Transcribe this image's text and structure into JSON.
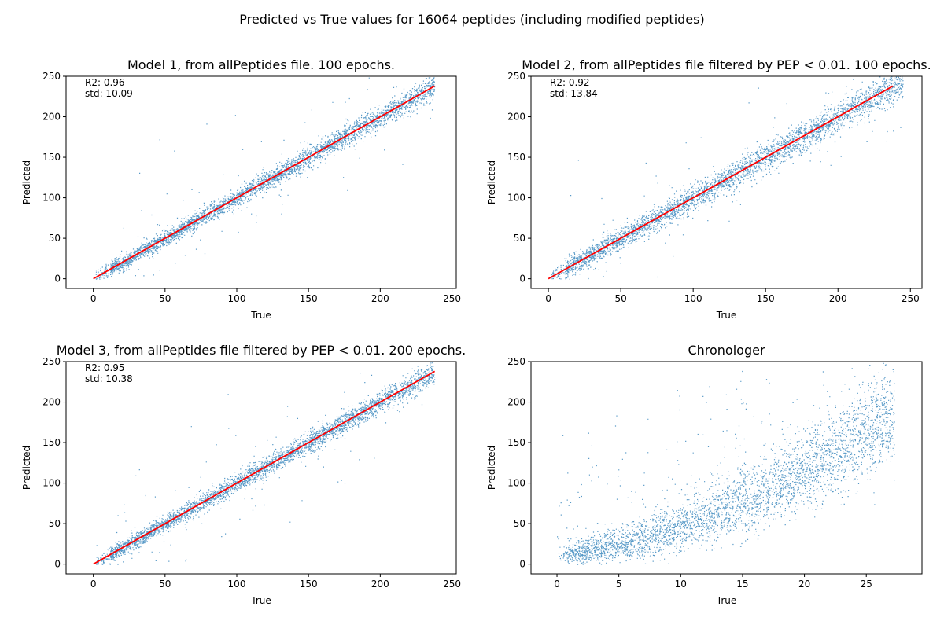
{
  "suptitle": "Predicted vs True values for 16064 peptides (including modified peptides)",
  "colors": {
    "points": "#1f77b4",
    "fit_line": "#ff0000",
    "axes": "#000000"
  },
  "chart_data": [
    {
      "type": "scatter",
      "title": "Model 1, from allPeptides file. 100 epochs.",
      "xlabel": "True",
      "ylabel": "Predicted",
      "xlim": [
        -19,
        253
      ],
      "ylim": [
        -12,
        250
      ],
      "xticks": [
        0,
        50,
        100,
        150,
        200,
        250
      ],
      "yticks": [
        0,
        50,
        100,
        150,
        200,
        250
      ],
      "annotation": [
        "R2: 0.96",
        "std: 10.09"
      ],
      "fit_line": {
        "x": [
          0,
          238
        ],
        "y": [
          0,
          238
        ]
      },
      "scatter_summary": {
        "x_range": [
          0,
          238
        ],
        "relation": "y ≈ x",
        "spread_std": 10.09
      }
    },
    {
      "type": "scatter",
      "title": "Model 2, from allPeptides file filtered by PEP < 0.01. 100 epochs.",
      "xlabel": "True",
      "ylabel": "Predicted",
      "xlim": [
        -12,
        258
      ],
      "ylim": [
        -12,
        250
      ],
      "xticks": [
        0,
        50,
        100,
        150,
        200,
        250
      ],
      "yticks": [
        0,
        50,
        100,
        150,
        200,
        250
      ],
      "annotation": [
        "R2: 0.92",
        "std: 13.84"
      ],
      "fit_line": {
        "x": [
          0,
          238
        ],
        "y": [
          0,
          238
        ]
      },
      "scatter_summary": {
        "x_range": [
          0,
          245
        ],
        "relation": "y ≈ x",
        "spread_std": 13.84
      }
    },
    {
      "type": "scatter",
      "title": "Model 3, from allPeptides file filtered by PEP < 0.01. 200 epochs.",
      "xlabel": "True",
      "ylabel": "Predicted",
      "xlim": [
        -19,
        253
      ],
      "ylim": [
        -12,
        250
      ],
      "xticks": [
        0,
        50,
        100,
        150,
        200,
        250
      ],
      "yticks": [
        0,
        50,
        100,
        150,
        200,
        250
      ],
      "annotation": [
        "R2: 0.95",
        "std: 10.38"
      ],
      "fit_line": {
        "x": [
          0,
          238
        ],
        "y": [
          0,
          238
        ]
      },
      "scatter_summary": {
        "x_range": [
          0,
          238
        ],
        "relation": "y ≈ x",
        "spread_std": 10.38
      }
    },
    {
      "type": "scatter",
      "title": "Chronologer",
      "xlabel": "True",
      "ylabel": "Predicted",
      "xlim": [
        -2.1,
        29.5
      ],
      "ylim": [
        -12,
        250
      ],
      "xticks": [
        0,
        5,
        10,
        15,
        20,
        25
      ],
      "yticks": [
        0,
        50,
        100,
        150,
        200,
        250
      ],
      "annotation": [],
      "fit_line": null,
      "scatter_summary": {
        "x_range": [
          0,
          28
        ],
        "relation": "y ≈ 1.7x + 0.17x²",
        "spread_std": 12
      }
    }
  ]
}
